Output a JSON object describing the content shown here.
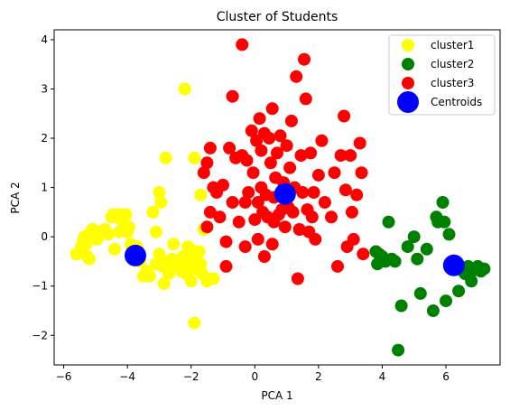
{
  "chart_data": {
    "type": "scatter",
    "title": "Cluster of Students",
    "xlabel": "PCA 1",
    "ylabel": "PCA 2",
    "xlim": [
      -6.3,
      7.7
    ],
    "ylim": [
      -2.6,
      4.2
    ],
    "xticks": [
      -6,
      -4,
      -2,
      0,
      2,
      4,
      6
    ],
    "yticks": [
      -2,
      -1,
      0,
      1,
      2,
      3,
      4
    ],
    "grid": false,
    "legend_position": "top-right",
    "series": [
      {
        "name": "cluster1",
        "color": "#ffff00",
        "points": [
          [
            -5.6,
            -0.35
          ],
          [
            -5.5,
            -0.3
          ],
          [
            -5.45,
            -0.2
          ],
          [
            -5.4,
            -0.1
          ],
          [
            -5.35,
            0.0
          ],
          [
            -5.3,
            -0.15
          ],
          [
            -5.25,
            -0.4
          ],
          [
            -5.2,
            -0.45
          ],
          [
            -5.15,
            0.1
          ],
          [
            -5.1,
            0.15
          ],
          [
            -5.0,
            0.05
          ],
          [
            -4.95,
            -0.05
          ],
          [
            -4.9,
            0.1
          ],
          [
            -4.8,
            0.1
          ],
          [
            -4.7,
            0.15
          ],
          [
            -4.6,
            0.05
          ],
          [
            -4.5,
            0.4
          ],
          [
            -4.45,
            0.45
          ],
          [
            -4.4,
            -0.25
          ],
          [
            -4.3,
            0.45
          ],
          [
            -4.25,
            0.1
          ],
          [
            -4.2,
            0.35
          ],
          [
            -4.1,
            0.45
          ],
          [
            -4.05,
            0.45
          ],
          [
            -4.0,
            0.1
          ],
          [
            -3.95,
            0.2
          ],
          [
            -3.9,
            -0.15
          ],
          [
            -3.85,
            -0.3
          ],
          [
            -3.8,
            -0.4
          ],
          [
            -3.7,
            -0.2
          ],
          [
            -3.6,
            -0.5
          ],
          [
            -3.5,
            -0.8
          ],
          [
            -3.4,
            -0.7
          ],
          [
            -3.3,
            -0.8
          ],
          [
            -3.2,
            0.5
          ],
          [
            -3.1,
            0.1
          ],
          [
            -3.1,
            -0.55
          ],
          [
            -3.0,
            -0.35
          ],
          [
            -2.95,
            0.7
          ],
          [
            -2.9,
            -0.6
          ],
          [
            -2.85,
            -0.95
          ],
          [
            -2.8,
            -0.5
          ],
          [
            -2.8,
            1.6
          ],
          [
            -2.7,
            -0.75
          ],
          [
            -2.6,
            -0.45
          ],
          [
            -2.55,
            -0.15
          ],
          [
            -2.5,
            -0.6
          ],
          [
            -2.4,
            -0.55
          ],
          [
            -2.35,
            -0.5
          ],
          [
            -2.3,
            -0.7
          ],
          [
            -2.25,
            -0.4
          ],
          [
            -2.2,
            -0.55
          ],
          [
            -2.15,
            -0.75
          ],
          [
            -2.1,
            -0.2
          ],
          [
            -2.05,
            -0.6
          ],
          [
            -2.0,
            -0.9
          ],
          [
            -1.95,
            -0.4
          ],
          [
            -1.9,
            -0.3
          ],
          [
            -1.85,
            -0.65
          ],
          [
            -1.8,
            -0.5
          ],
          [
            -1.75,
            -0.3
          ],
          [
            -1.7,
            -0.55
          ],
          [
            -1.65,
            -0.75
          ],
          [
            -1.6,
            0.15
          ],
          [
            -1.5,
            -0.9
          ],
          [
            -1.4,
            -0.85
          ],
          [
            -1.3,
            -0.85
          ],
          [
            -1.9,
            -1.75
          ],
          [
            -3.0,
            0.9
          ],
          [
            -2.2,
            3.0
          ],
          [
            -1.9,
            1.6
          ],
          [
            -1.7,
            0.85
          ]
        ]
      },
      {
        "name": "cluster2",
        "color": "#008000",
        "points": [
          [
            3.8,
            -0.3
          ],
          [
            3.85,
            -0.55
          ],
          [
            3.9,
            -0.35
          ],
          [
            4.0,
            -0.4
          ],
          [
            4.1,
            -0.5
          ],
          [
            4.2,
            0.3
          ],
          [
            4.3,
            -0.45
          ],
          [
            4.4,
            -0.5
          ],
          [
            4.5,
            -2.3
          ],
          [
            4.6,
            -1.4
          ],
          [
            4.8,
            -0.2
          ],
          [
            5.0,
            0.0
          ],
          [
            5.1,
            -0.45
          ],
          [
            5.2,
            -1.15
          ],
          [
            5.4,
            -0.25
          ],
          [
            5.6,
            -1.5
          ],
          [
            5.7,
            0.4
          ],
          [
            5.75,
            0.3
          ],
          [
            5.9,
            0.7
          ],
          [
            5.95,
            0.3
          ],
          [
            6.0,
            -1.3
          ],
          [
            6.1,
            0.05
          ],
          [
            6.3,
            -0.55
          ],
          [
            6.4,
            -1.1
          ],
          [
            6.55,
            -0.7
          ],
          [
            6.6,
            -0.75
          ],
          [
            6.7,
            -0.6
          ],
          [
            6.75,
            -0.8
          ],
          [
            6.8,
            -0.9
          ],
          [
            6.9,
            -0.65
          ],
          [
            7.0,
            -0.6
          ],
          [
            7.1,
            -0.7
          ],
          [
            7.2,
            -0.65
          ]
        ]
      },
      {
        "name": "cluster3",
        "color": "#ff0000",
        "points": [
          [
            -1.6,
            1.3
          ],
          [
            -1.5,
            1.5
          ],
          [
            -1.5,
            0.2
          ],
          [
            -1.4,
            1.8
          ],
          [
            -1.4,
            0.5
          ],
          [
            -1.3,
            1.0
          ],
          [
            -1.2,
            0.9
          ],
          [
            -1.1,
            0.4
          ],
          [
            -1.0,
            1.05
          ],
          [
            -0.9,
            -0.1
          ],
          [
            -0.9,
            -0.6
          ],
          [
            -0.8,
            1.8
          ],
          [
            -0.7,
            2.85
          ],
          [
            -0.7,
            0.7
          ],
          [
            -0.6,
            1.6
          ],
          [
            -0.5,
            0.3
          ],
          [
            -0.4,
            1.65
          ],
          [
            -0.4,
            3.9
          ],
          [
            -0.3,
            0.7
          ],
          [
            -0.3,
            -0.2
          ],
          [
            -0.2,
            0.9
          ],
          [
            -0.1,
            2.15
          ],
          [
            -0.05,
            1.3
          ],
          [
            0.0,
            0.35
          ],
          [
            0.05,
            1.95
          ],
          [
            0.1,
            0.7
          ],
          [
            0.1,
            -0.05
          ],
          [
            0.15,
            2.4
          ],
          [
            0.2,
            1.0
          ],
          [
            0.25,
            0.5
          ],
          [
            0.3,
            2.1
          ],
          [
            0.35,
            0.85
          ],
          [
            0.4,
            0.4
          ],
          [
            0.5,
            1.5
          ],
          [
            0.55,
            -0.15
          ],
          [
            0.6,
            0.3
          ],
          [
            0.65,
            1.2
          ],
          [
            0.7,
            1.7
          ],
          [
            0.75,
            0.45
          ],
          [
            0.8,
            2.05
          ],
          [
            0.85,
            0.55
          ],
          [
            0.9,
            1.1
          ],
          [
            0.95,
            0.2
          ],
          [
            1.0,
            1.85
          ],
          [
            1.05,
            0.6
          ],
          [
            1.1,
            1.4
          ],
          [
            1.15,
            2.35
          ],
          [
            1.2,
            0.5
          ],
          [
            1.25,
            1.0
          ],
          [
            1.3,
            3.25
          ],
          [
            1.35,
            -0.85
          ],
          [
            1.4,
            0.15
          ],
          [
            1.45,
            1.65
          ],
          [
            1.5,
            0.9
          ],
          [
            1.55,
            3.6
          ],
          [
            1.6,
            2.8
          ],
          [
            1.65,
            0.55
          ],
          [
            1.7,
            0.1
          ],
          [
            1.75,
            1.7
          ],
          [
            1.8,
            0.4
          ],
          [
            1.85,
            0.9
          ],
          [
            1.9,
            -0.05
          ],
          [
            2.0,
            1.25
          ],
          [
            2.1,
            1.95
          ],
          [
            2.2,
            0.7
          ],
          [
            2.4,
            0.4
          ],
          [
            2.5,
            1.3
          ],
          [
            2.6,
            -0.6
          ],
          [
            2.7,
            1.65
          ],
          [
            2.8,
            2.45
          ],
          [
            2.85,
            0.95
          ],
          [
            2.9,
            -0.2
          ],
          [
            3.0,
            1.65
          ],
          [
            3.05,
            0.5
          ],
          [
            3.1,
            -0.05
          ],
          [
            3.2,
            0.85
          ],
          [
            3.3,
            1.9
          ],
          [
            3.35,
            1.3
          ],
          [
            3.4,
            -0.35
          ],
          [
            0.3,
            -0.4
          ],
          [
            0.2,
            1.75
          ],
          [
            0.6,
            0.8
          ],
          [
            0.55,
            2.6
          ],
          [
            -0.25,
            1.55
          ],
          [
            0.45,
            2.0
          ]
        ]
      }
    ],
    "centroids": {
      "name": "Centroids",
      "color": "#0000ff",
      "points": [
        [
          -3.75,
          -0.38
        ],
        [
          0.95,
          0.87
        ],
        [
          6.25,
          -0.58
        ]
      ]
    }
  }
}
